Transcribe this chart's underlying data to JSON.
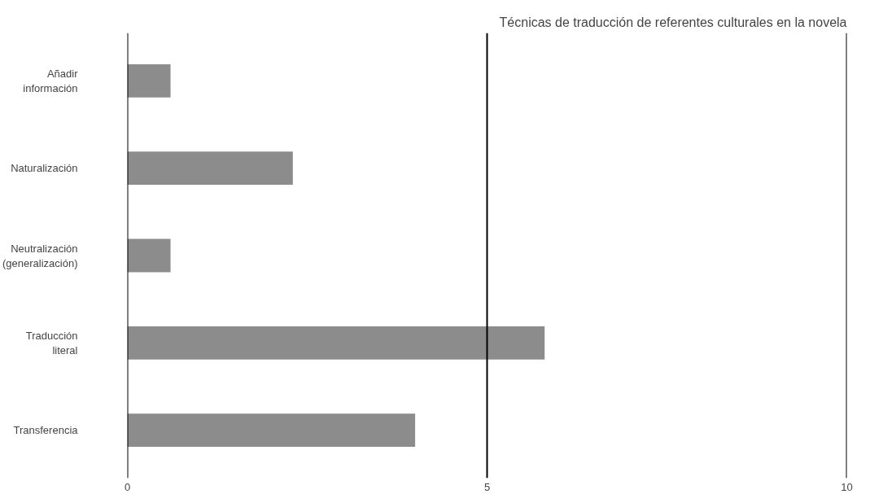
{
  "chart_data": {
    "type": "bar",
    "orientation": "horizontal",
    "title": "Técnicas de traducción de referentes culturales en la novela",
    "categories": [
      "Añadir información",
      "Naturalización",
      "Neutralización (generalización)",
      "Traducción literal",
      "Transferencia"
    ],
    "values": [
      0.6,
      2.3,
      0.6,
      5.8,
      4
    ],
    "color": "#8c8c8c",
    "xlim": [
      0,
      10
    ],
    "xticks": [
      0,
      5,
      10
    ],
    "grid": "x"
  }
}
